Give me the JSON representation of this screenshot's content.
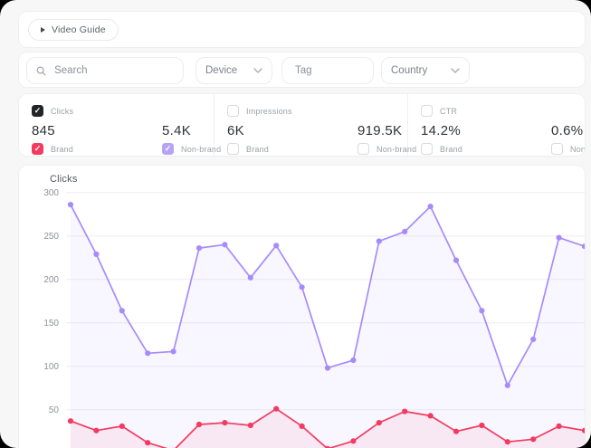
{
  "header": {
    "video_guide_label": "Video Guide"
  },
  "filters": {
    "search": {
      "placeholder": "Search"
    },
    "device": {
      "label": "Device"
    },
    "tag": {
      "placeholder": "Tag"
    },
    "country": {
      "label": "Country"
    }
  },
  "metrics": [
    {
      "name": "Clicks",
      "checked": true,
      "brand": {
        "label": "Brand",
        "value": "845",
        "checked": true
      },
      "nonbrand": {
        "label": "Non-brand",
        "value": "5.4K",
        "checked": true
      }
    },
    {
      "name": "Impressions",
      "checked": false,
      "brand": {
        "label": "Brand",
        "value": "6K",
        "checked": false
      },
      "nonbrand": {
        "label": "Non-brand",
        "value": "919.5K",
        "checked": false
      }
    },
    {
      "name": "CTR",
      "checked": false,
      "brand": {
        "label": "Brand",
        "value": "14.2%",
        "checked": false
      },
      "nonbrand": {
        "label": "Non-brand",
        "value": "0.6%",
        "checked": false
      }
    }
  ],
  "chart_data": {
    "type": "line",
    "title": "Clicks",
    "y_ticks": [
      300,
      250,
      200,
      150,
      100,
      50
    ],
    "ylim": [
      0,
      300
    ],
    "grid": true,
    "legend_position": "none",
    "x_labels_visible": false,
    "series": [
      {
        "name": "Non-brand",
        "color": "#a78bfa",
        "fill": "rgba(167,139,250,0.08)",
        "values": [
          286,
          229,
          164,
          115,
          117,
          236,
          240,
          202,
          239,
          191,
          98,
          107,
          244,
          255,
          284,
          222,
          164,
          78,
          131,
          248,
          238
        ]
      },
      {
        "name": "Brand",
        "color": "#f43a5f",
        "fill": "rgba(244,58,95,0.07)",
        "values": [
          37,
          26,
          31,
          12,
          3,
          33,
          35,
          32,
          51,
          31,
          5,
          14,
          35,
          48,
          43,
          25,
          32,
          13,
          16,
          31,
          26
        ]
      }
    ]
  },
  "colors": {
    "window_bg": "#f7f7f8",
    "card_bg": "#ffffff",
    "brand_accent": "#f43a5f",
    "nonbrand_accent": "#a78bfa",
    "checkbox_dark": "#232428",
    "checkbox_nonbrand": "#b7a3f3",
    "gridline": "#eeedf2",
    "axis_text": "#8d929b"
  }
}
